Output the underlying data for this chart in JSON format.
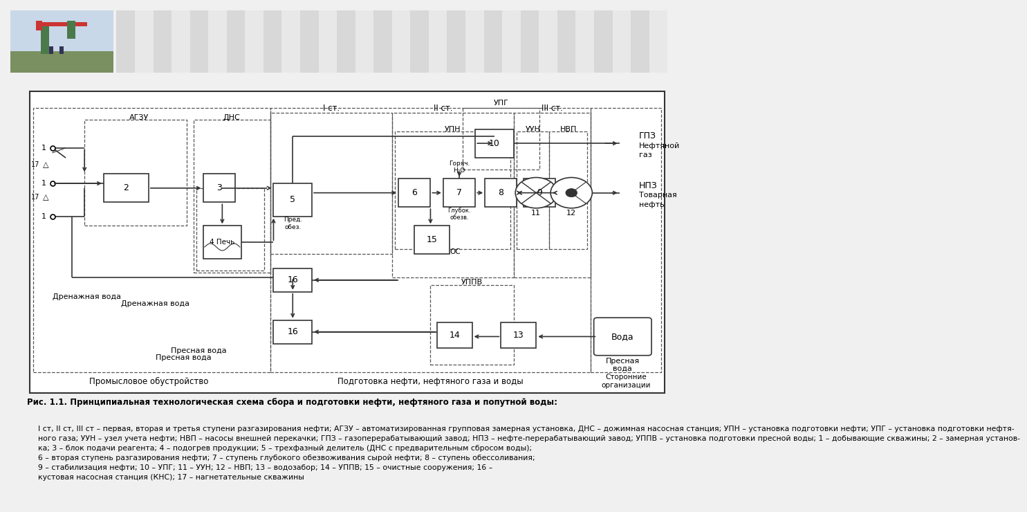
{
  "bg_color": "#f0f0f0",
  "diagram_bg": "#ffffff",
  "lc": "#333333",
  "caption_title": "Рис. 1.1. Принципиальная технологическая схема сбора и подготовки нефти, нефтяного газа и попутной воды:",
  "caption_lines": [
    "I ст, II ст, III ст – первая, вторая и третья ступени разгазирования нефти; АГЗУ – автоматизированная групповая замерная установка, ДНС – дожимная насосная станция; УПН – установка подготовки нефти; УПГ – установка подготовки нефтя-",
    "ного газа; УУН – узел учета нефти; НВП – насосы внешней перекачки; ГПЗ – газоперерабатывающий завод; НПЗ – нефте-перерабатывающий завод; УППВ – установка подготовки пресной воды; 1 – добывающие скважины; 2 – замерная установ-",
    "ка; 3 – блок подачи реагента; 4 – подогрев продукции; 5 – трехфазный делитель (ДНС с предварительным сбросом воды);",
    "6 – вторая ступень разгазирования нефти; 7 – ступень глубокого обезвоживания сырой нефти; 8 – ступень обессоливания;",
    "9 – стабилизация нефти; 10 – УПГ; 11 – УУН; 12 – НВП; 13 – водозабор; 14 – УППВ; 15 – очистные сооружения; 16 –",
    "кустовая насосная станция (КНС); 17 – нагнетательные скважины"
  ],
  "header_photo_color_sky": "#c8d8e8",
  "header_photo_color_ground": "#7a9060",
  "header_photo_color_pump": "#4a7a4a",
  "header_stripe_color": "#b0b8c8",
  "header_blue_line": "#4060a0"
}
